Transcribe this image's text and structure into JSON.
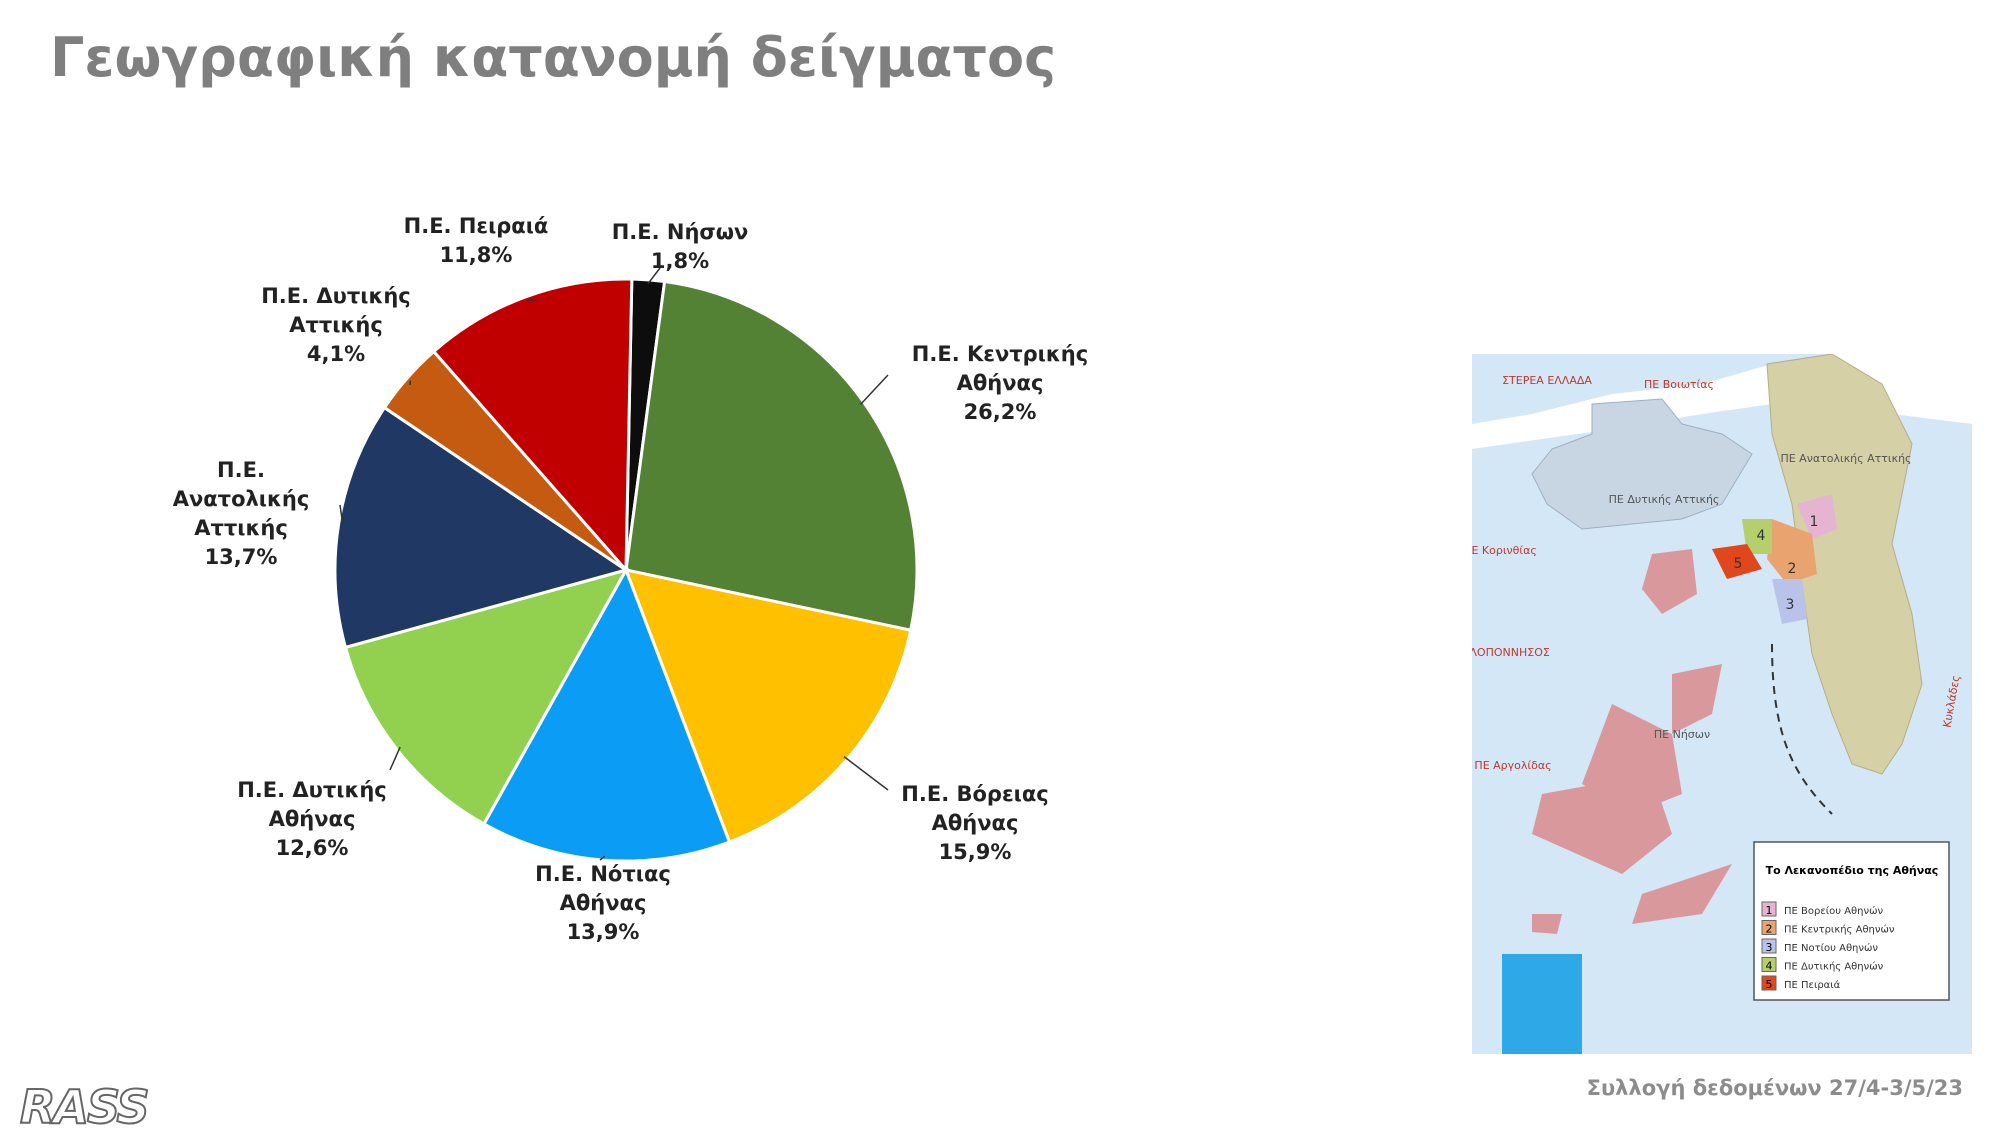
{
  "chart_data": {
    "type": "pie",
    "title": "Γεωγραφική κατανομή δείγματος",
    "categories": [
      "Π.Ε. Νήσων",
      "Π.Ε. Κεντρικής Αθήνας",
      "Π.Ε. Βόρειας Αθήνας",
      "Π.Ε. Νότιας Αθήνας",
      "Π.Ε. Δυτικής Αθήνας",
      "Π.Ε. Ανατολικής Αττικής",
      "Π.Ε. Δυτικής Αττικής",
      "Π.Ε. Πειραιά"
    ],
    "values": [
      1.8,
      26.2,
      15.9,
      13.9,
      12.6,
      13.7,
      4.1,
      11.8
    ],
    "value_labels": [
      "1,8%",
      "26,2%",
      "15,9%",
      "13,9%",
      "12,6%",
      "13,7%",
      "4,1%",
      "11,8%"
    ],
    "colors": [
      "#0d0d0d",
      "#548235",
      "#ffc000",
      "#0b9cf5",
      "#92d050",
      "#1f3864",
      "#c55a11",
      "#c00000"
    ]
  },
  "map": {
    "labels": [
      "ΣΤΕΡΕΑ ΕΛΛΑΔΑ",
      "ΠΕ Βοιωτίας",
      "ΠΕ Ανατολικής Αττικής",
      "ΠΕ Δυτικής Αττικής",
      "ΠΕ Κορινθίας",
      "ΠΕΛΟΠΟΝΝΗΣΟΣ",
      "ΠΕ Νήσων",
      "ΠΕ Αργολίδας",
      "Κυκλάδες"
    ],
    "legend": {
      "title": "Το Λεκανοπέδιο της Αθήνας",
      "items": [
        {
          "number": "1",
          "name": "ΠΕ Βορείου Αθηνών"
        },
        {
          "number": "2",
          "name": "ΠΕ Κεντρικής Αθηνών"
        },
        {
          "number": "3",
          "name": "ΠΕ Νοτίου Αθηνών"
        },
        {
          "number": "4",
          "name": "ΠΕ Δυτικής Αθηνών"
        },
        {
          "number": "5",
          "name": "ΠΕ Πειραιά"
        }
      ]
    }
  },
  "footer": "Συλλογή δεδομένων 27/4-3/5/23",
  "logo": "RASS"
}
